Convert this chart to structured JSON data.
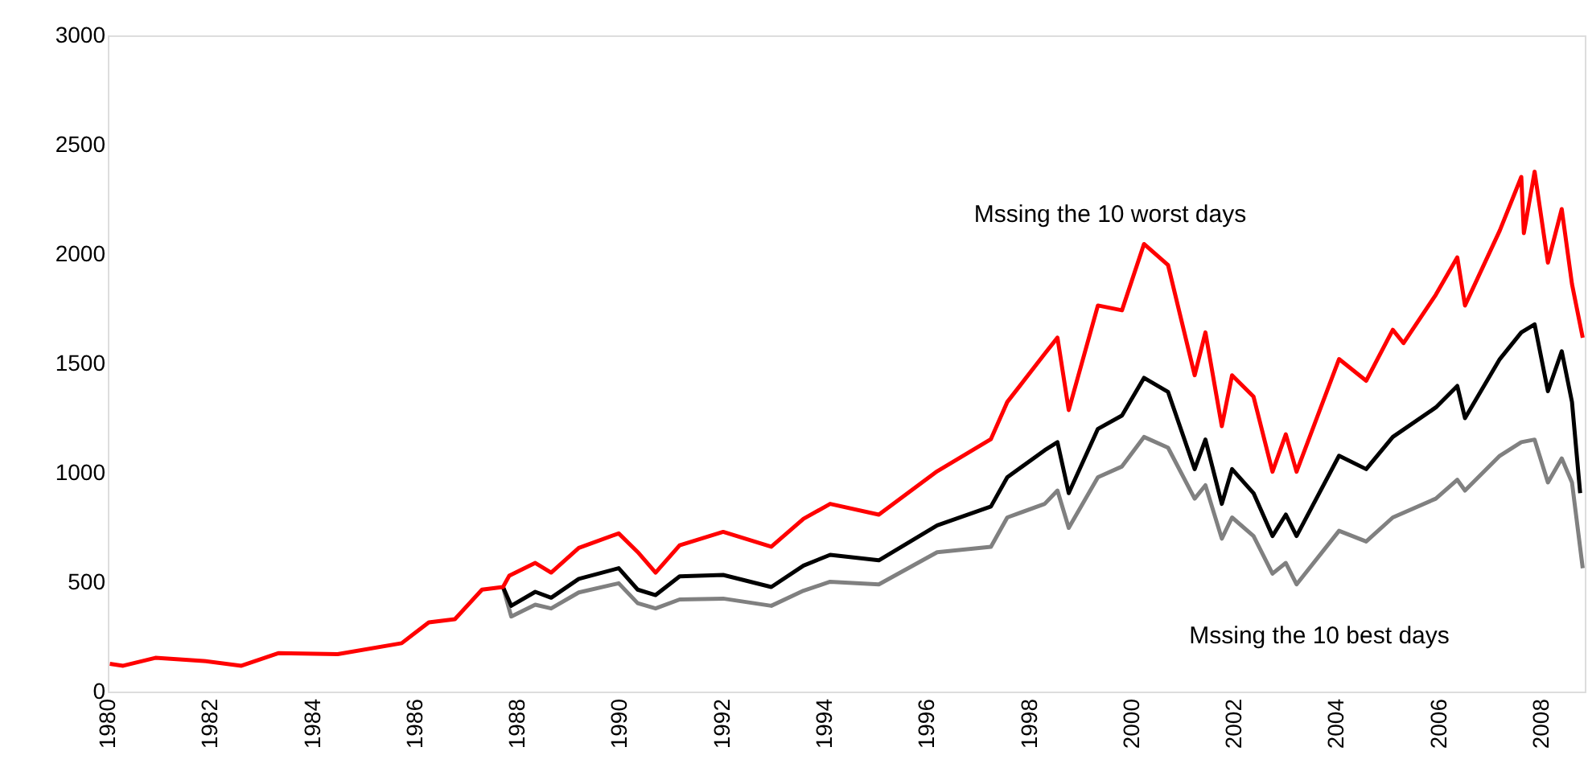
{
  "chart_data": {
    "type": "line",
    "xlim": [
      1980,
      2008.85
    ],
    "xticks": [
      1980,
      1982,
      1984,
      1986,
      1988,
      1990,
      1992,
      1994,
      1996,
      1998,
      2000,
      2002,
      2004,
      2006,
      2008
    ],
    "ylim": [
      0,
      3000
    ],
    "yticks": [
      0,
      500,
      1000,
      1500,
      2000,
      2500,
      3000
    ],
    "grid": false,
    "marker": "none",
    "line_style": "solid",
    "annotations": [
      "Mssing the 10 worst days",
      "Mssing the 10 best days"
    ],
    "series": [
      {
        "color": "#808080",
        "x": [
          1987.72,
          1987.88,
          1988.35,
          1988.66,
          1989.2,
          1989.98,
          1990.35,
          1990.7,
          1991.17,
          1992.02,
          1992.96,
          1993.59,
          1994.11,
          1995.06,
          1996.2,
          1997.25,
          1997.57,
          1998.3,
          1998.55,
          1998.77,
          1999.34,
          1999.81,
          2000.24,
          2000.71,
          2001.23,
          2001.44,
          2001.76,
          2001.96,
          2002.38,
          2002.75,
          2003.01,
          2003.22,
          2004.05,
          2004.58,
          2005.1,
          2005.94,
          2006.36,
          2006.51,
          2007.19,
          2007.61,
          2007.87,
          2008.13,
          2008.4,
          2008.6,
          2008.81
        ],
        "values": [
          478,
          343,
          397,
          380,
          453,
          495,
          404,
          380,
          421,
          425,
          392,
          461,
          502,
          490,
          637,
          662,
          796,
          858,
          919,
          748,
          980,
          1029,
          1164,
          1115,
          882,
          943,
          699,
          796,
          711,
          539,
          588,
          490,
          735,
          686,
          796,
          882,
          968,
          919,
          1078,
          1140,
          1152,
          956,
          1066,
          956,
          564
        ]
      },
      {
        "color": "#000000",
        "x": [
          1987.72,
          1987.88,
          1988.35,
          1988.66,
          1989.2,
          1989.98,
          1990.35,
          1990.7,
          1991.17,
          1992.02,
          1992.96,
          1993.59,
          1994.11,
          1995.06,
          1996.2,
          1997.25,
          1997.57,
          1998.3,
          1998.55,
          1998.77,
          1999.34,
          1999.81,
          2000.24,
          2000.71,
          2001.23,
          2001.44,
          2001.76,
          2001.96,
          2002.38,
          2002.75,
          2003.01,
          2003.22,
          2004.05,
          2004.58,
          2005.1,
          2005.94,
          2006.36,
          2006.51,
          2007.19,
          2007.61,
          2007.87,
          2008.13,
          2008.4,
          2008.6,
          2008.76
        ],
        "values": [
          478,
          392,
          456,
          429,
          515,
          564,
          466,
          441,
          527,
          533,
          478,
          576,
          625,
          600,
          760,
          846,
          980,
          1103,
          1140,
          907,
          1201,
          1262,
          1434,
          1370,
          1017,
          1152,
          858,
          1017,
          907,
          711,
          809,
          711,
          1078,
          1017,
          1164,
          1299,
          1397,
          1250,
          1520,
          1642,
          1679,
          1373,
          1556,
          1324,
          907
        ]
      },
      {
        "color": "#ff0000",
        "x": [
          1980.04,
          1980.3,
          1980.93,
          1981.87,
          1982.61,
          1983.34,
          1984.49,
          1985.74,
          1986.27,
          1986.78,
          1987.31,
          1987.72,
          1987.84,
          1988.35,
          1988.66,
          1989.2,
          1989.98,
          1990.35,
          1990.7,
          1991.17,
          1992.02,
          1992.96,
          1993.59,
          1994.11,
          1995.06,
          1996.2,
          1997.25,
          1997.57,
          1998.3,
          1998.55,
          1998.77,
          1999.34,
          1999.81,
          2000.24,
          2000.71,
          2001.23,
          2001.44,
          2001.76,
          2001.96,
          2002.38,
          2002.75,
          2003.01,
          2003.22,
          2004.05,
          2004.58,
          2005.1,
          2005.31,
          2005.94,
          2006.36,
          2006.51,
          2007.19,
          2007.61,
          2007.66,
          2007.87,
          2008.13,
          2008.4,
          2008.6,
          2008.81
        ],
        "values": [
          127,
          118,
          154,
          140,
          118,
          176,
          171,
          221,
          316,
          331,
          466,
          478,
          529,
          588,
          544,
          657,
          723,
          638,
          544,
          669,
          730,
          662,
          790,
          858,
          809,
          1007,
          1154,
          1324,
          1544,
          1618,
          1287,
          1765,
          1743,
          2046,
          1950,
          1446,
          1642,
          1213,
          1446,
          1348,
          1005,
          1176,
          1005,
          1520,
          1421,
          1654,
          1593,
          1814,
          1985,
          1765,
          2108,
          2353,
          2096,
          2377,
          1961,
          2206,
          1863,
          1618
        ]
      }
    ]
  }
}
